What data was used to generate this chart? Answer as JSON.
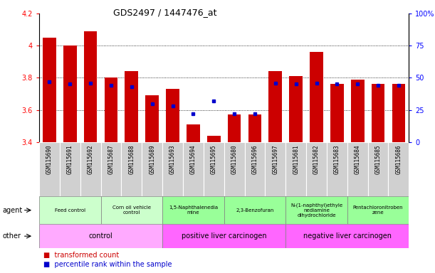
{
  "title": "GDS2497 / 1447476_at",
  "samples": [
    "GSM115690",
    "GSM115691",
    "GSM115692",
    "GSM115687",
    "GSM115688",
    "GSM115689",
    "GSM115693",
    "GSM115694",
    "GSM115695",
    "GSM115680",
    "GSM115696",
    "GSM115697",
    "GSM115681",
    "GSM115682",
    "GSM115683",
    "GSM115684",
    "GSM115685",
    "GSM115686"
  ],
  "transformed_counts": [
    4.05,
    4.0,
    4.09,
    3.8,
    3.84,
    3.69,
    3.73,
    3.51,
    3.44,
    3.57,
    3.57,
    3.84,
    3.81,
    3.96,
    3.76,
    3.79,
    3.76,
    3.76
  ],
  "percentile_ranks": [
    47,
    45,
    46,
    44,
    43,
    30,
    28,
    22,
    32,
    22,
    22,
    46,
    45,
    46,
    45,
    45,
    44,
    44
  ],
  "ylim_left": [
    3.4,
    4.2
  ],
  "ylim_right": [
    0,
    100
  ],
  "yticks_left": [
    3.4,
    3.6,
    3.8,
    4.0,
    4.2
  ],
  "yticks_right": [
    0,
    25,
    50,
    75,
    100
  ],
  "agent_groups": [
    {
      "label": "Feed control",
      "start": 0,
      "end": 3,
      "color": "#ccffcc"
    },
    {
      "label": "Corn oil vehicle\ncontrol",
      "start": 3,
      "end": 6,
      "color": "#ccffcc"
    },
    {
      "label": "1,5-Naphthalenedia\nmine",
      "start": 6,
      "end": 9,
      "color": "#99ff99"
    },
    {
      "label": "2,3-Benzofuran",
      "start": 9,
      "end": 12,
      "color": "#99ff99"
    },
    {
      "label": "N-(1-naphthyl)ethyle\nnediamine\ndihydrochloride",
      "start": 12,
      "end": 15,
      "color": "#99ff99"
    },
    {
      "label": "Pentachloronitroben\nzene",
      "start": 15,
      "end": 18,
      "color": "#99ff99"
    }
  ],
  "other_groups": [
    {
      "label": "control",
      "start": 0,
      "end": 6,
      "color": "#ffaaff"
    },
    {
      "label": "positive liver carcinogen",
      "start": 6,
      "end": 12,
      "color": "#ff66ff"
    },
    {
      "label": "negative liver carcinogen",
      "start": 12,
      "end": 18,
      "color": "#ff66ff"
    }
  ],
  "bar_color": "#cc0000",
  "dot_color": "#0000cc",
  "tick_bg_color": "#d0d0d0"
}
